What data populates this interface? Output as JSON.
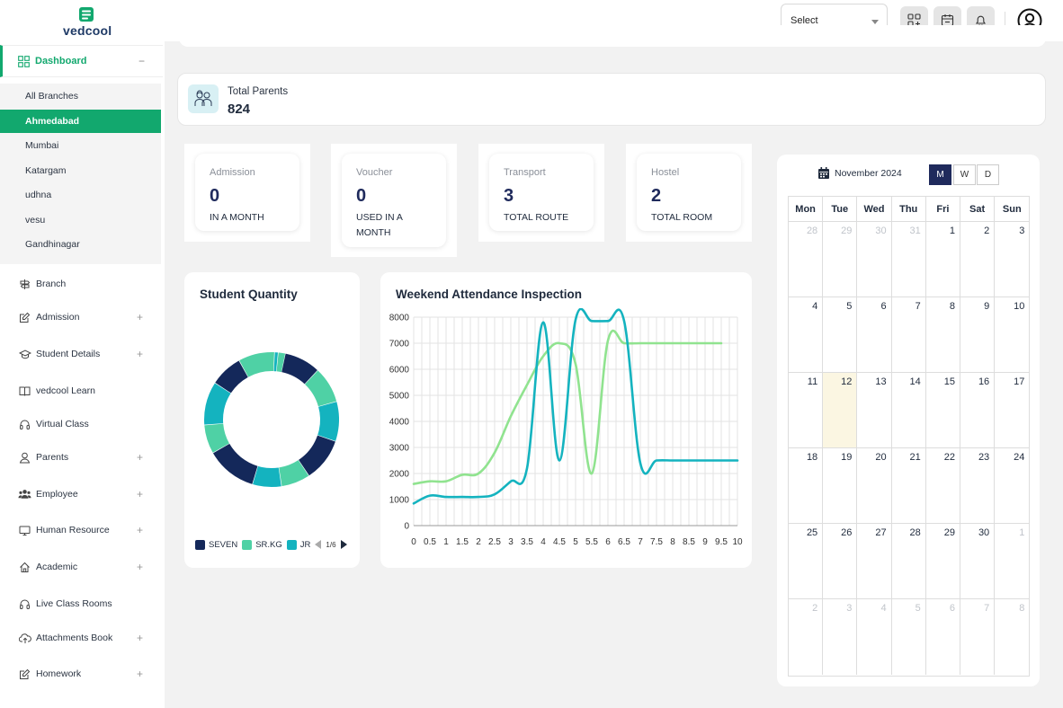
{
  "brand": {
    "name": "vedcool"
  },
  "header": {
    "select_label": "Select"
  },
  "sidebar": {
    "dashboard": "Dashboard",
    "branches": [
      "All Branches",
      "Ahmedabad",
      "Mumbai",
      "Katargam",
      "udhna",
      "vesu",
      "Gandhinagar"
    ],
    "active_branch": "Ahmedabad",
    "items": [
      {
        "label": "Branch",
        "icon": "signpost-icon",
        "expandable": false
      },
      {
        "label": "Admission",
        "icon": "edit-icon",
        "expandable": true
      },
      {
        "label": "Student Details",
        "icon": "graduation-cap-icon",
        "expandable": true
      },
      {
        "label": "vedcool Learn",
        "icon": "book-icon",
        "expandable": false
      },
      {
        "label": "Virtual Class",
        "icon": "headset-icon",
        "expandable": false
      },
      {
        "label": "Parents",
        "icon": "user-icon",
        "expandable": true
      },
      {
        "label": "Employee",
        "icon": "users-icon",
        "expandable": true
      },
      {
        "label": "Human Resource",
        "icon": "monitor-icon",
        "expandable": true
      },
      {
        "label": "Academic",
        "icon": "home-icon",
        "expandable": true
      },
      {
        "label": "Live Class Rooms",
        "icon": "headset-icon",
        "expandable": false
      },
      {
        "label": "Attachments Book",
        "icon": "cloud-upload-icon",
        "expandable": true
      },
      {
        "label": "Homework",
        "icon": "edit-icon",
        "expandable": true
      }
    ]
  },
  "total_parents": {
    "label": "Total Parents",
    "value": "824"
  },
  "stats": [
    {
      "title": "Admission",
      "value": "0",
      "sub": "IN A MONTH"
    },
    {
      "title": "Voucher",
      "value": "0",
      "sub": "USED IN A MONTH"
    },
    {
      "title": "Transport",
      "value": "3",
      "sub": "TOTAL ROUTE"
    },
    {
      "title": "Hostel",
      "value": "2",
      "sub": "TOTAL ROOM"
    }
  ],
  "student_quantity": {
    "title": "Student Quantity",
    "legend": [
      {
        "name": "SEVEN",
        "color": "#14285a"
      },
      {
        "name": "SR.KG",
        "color": "#4fd1a5"
      },
      {
        "name": "JR",
        "color": "#14b3bf"
      }
    ],
    "pager": "1/6"
  },
  "attendance_chart": {
    "title": "Weekend Attendance Inspection"
  },
  "chart_data": {
    "type": "line",
    "title": "Weekend Attendance Inspection",
    "x": [
      0,
      0.5,
      1,
      1.5,
      2,
      2.5,
      3,
      3.5,
      4,
      4.5,
      5,
      5.5,
      6,
      6.5,
      7,
      7.5,
      8,
      8.5,
      9,
      9.5,
      10
    ],
    "xlim": [
      0,
      10
    ],
    "ylim": [
      0,
      8000
    ],
    "yticks": [
      0,
      1000,
      2000,
      3000,
      4000,
      5000,
      6000,
      7000,
      8000
    ],
    "grid": true,
    "series": [
      {
        "color": "#90e38f",
        "x": [
          0,
          0.5,
          1,
          1.5,
          2,
          2.5,
          3,
          3.5,
          4,
          4.5,
          5,
          5.5,
          6,
          6.5,
          7,
          7.5,
          8,
          8.5,
          9,
          9.5
        ],
        "values": [
          1600,
          1700,
          1700,
          1950,
          2000,
          2800,
          4200,
          5400,
          6500,
          7000,
          6200,
          2000,
          7100,
          7000,
          7000,
          7000,
          7000,
          7000,
          7000,
          7000
        ]
      },
      {
        "color": "#14b3bf",
        "x": [
          0,
          0.5,
          1,
          1.5,
          2,
          2.5,
          3,
          3.5,
          4,
          4.5,
          5,
          5.5,
          6,
          6.5,
          7,
          7.5,
          8,
          8.5,
          9,
          9.5,
          10
        ],
        "values": [
          850,
          1150,
          1100,
          1100,
          1100,
          1200,
          1700,
          2200,
          7800,
          2500,
          7900,
          7850,
          7850,
          7850,
          2400,
          2500,
          2500,
          2500,
          2500,
          2500,
          2500
        ]
      }
    ]
  },
  "calendar": {
    "month_label": "November 2024",
    "views": [
      "M",
      "W",
      "D"
    ],
    "active_view": "M",
    "weekdays": [
      "Mon",
      "Tue",
      "Wed",
      "Thu",
      "Fri",
      "Sat",
      "Sun"
    ],
    "weeks": [
      [
        "28",
        "29",
        "30",
        "31",
        "1",
        "2",
        "3"
      ],
      [
        "4",
        "5",
        "6",
        "7",
        "8",
        "9",
        "10"
      ],
      [
        "11",
        "12",
        "13",
        "14",
        "15",
        "16",
        "17"
      ],
      [
        "18",
        "19",
        "20",
        "21",
        "22",
        "23",
        "24"
      ],
      [
        "25",
        "26",
        "27",
        "28",
        "29",
        "30",
        "1"
      ],
      [
        "2",
        "3",
        "4",
        "5",
        "6",
        "7",
        "8"
      ]
    ],
    "today": "12"
  }
}
